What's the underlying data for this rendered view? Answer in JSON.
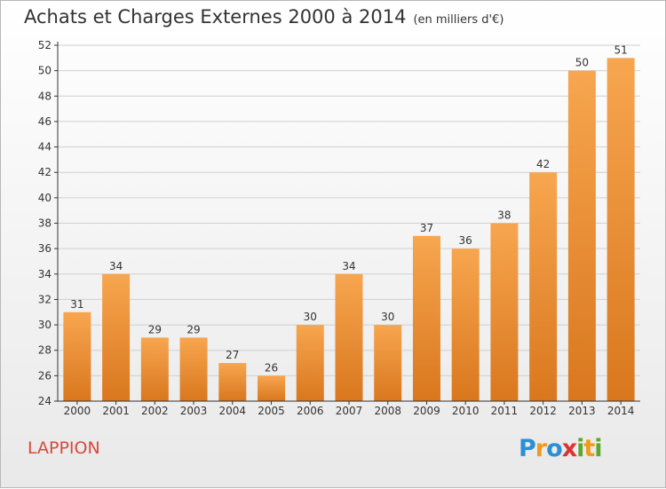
{
  "title": "Achats et Charges Externes 2000 à 2014",
  "subtitle": "(en milliers d'€)",
  "commune": "LAPPION",
  "logo": {
    "text": "Proxiti",
    "letters": [
      {
        "ch": "P",
        "color": "#2a8fd6"
      },
      {
        "ch": "r",
        "color": "#f29a1b"
      },
      {
        "ch": "o",
        "color": "#2a8fd6"
      },
      {
        "ch": "x",
        "color": "#e03030"
      },
      {
        "ch": "i",
        "color": "#5aa82e"
      },
      {
        "ch": "t",
        "color": "#f29a1b"
      },
      {
        "ch": "i",
        "color": "#5aa82e"
      }
    ]
  },
  "chart_data": {
    "type": "bar",
    "categories": [
      "2000",
      "2001",
      "2002",
      "2003",
      "2004",
      "2005",
      "2006",
      "2007",
      "2008",
      "2009",
      "2010",
      "2011",
      "2012",
      "2013",
      "2014"
    ],
    "values": [
      31,
      34,
      29,
      29,
      27,
      26,
      30,
      34,
      30,
      37,
      36,
      38,
      42,
      50,
      51
    ],
    "ylim": [
      24,
      52
    ],
    "yticks": [
      24,
      26,
      28,
      30,
      32,
      34,
      36,
      38,
      40,
      42,
      44,
      46,
      48,
      50,
      52
    ],
    "grid": true,
    "colors": {
      "bar_light": "#f7a64f",
      "bar_dark": "#d9771e",
      "grid": "#d0d0d0",
      "axis": "#333333"
    }
  }
}
